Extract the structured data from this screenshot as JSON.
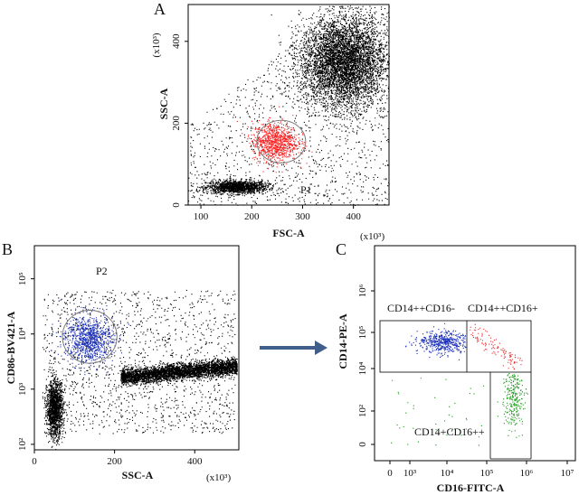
{
  "colors": {
    "events": "#000000",
    "p1_gate_events": "#ff2020",
    "p2_gate_events": "#1a2fb8",
    "q1_events": "#1a2fb8",
    "q2_events": "#e53030",
    "q3_events": "#1a9a1a",
    "gate_outline": "#7a7a7a",
    "arrow": "#3f5f8a"
  },
  "chart_data": [
    {
      "panel": "A",
      "type": "scatter",
      "xlabel": "FSC-A",
      "ylabel": "SSC-A",
      "x_unit": "(x10³)",
      "y_unit": "(x10³)",
      "xlim": [
        75,
        470
      ],
      "ylim": [
        0,
        490
      ],
      "x_ticks": [
        100,
        200,
        300,
        400
      ],
      "y_ticks": [
        0,
        200,
        400
      ],
      "populations": [
        {
          "name": "debris",
          "cx": 170,
          "cy": 45,
          "sx": 30,
          "sy": 8,
          "n": 1500
        },
        {
          "name": "granulocytes",
          "cx": 380,
          "cy": 350,
          "sx": 42,
          "sy": 55,
          "n": 5500
        },
        {
          "name": "P1",
          "cx": 245,
          "cy": 155,
          "sx": 22,
          "sy": 24,
          "n": 900
        },
        {
          "name": "background",
          "n": 1600
        }
      ],
      "gate": {
        "name": "P1",
        "label": "P1",
        "center": [
          258,
          155
        ],
        "radius": [
          48,
          52
        ]
      }
    },
    {
      "panel": "B",
      "type": "scatter",
      "xlabel": "SSC-A",
      "ylabel": "CD86-BV421-A",
      "x_unit": "(x10³)",
      "xlim": [
        0,
        510
      ],
      "ylim_log": [
        1.9,
        5.6
      ],
      "x_ticks": [
        0,
        200,
        400
      ],
      "y_ticks": [
        "10²",
        "10³",
        "10⁴",
        "10⁵"
      ],
      "y_tick_values": [
        2,
        3,
        4,
        5
      ],
      "populations": [
        {
          "name": "lymphocytes",
          "cx": 50,
          "cy": 2.65,
          "sx": 10,
          "sy": 0.25,
          "n": 1500
        },
        {
          "name": "P2",
          "cx": 135,
          "cy": 3.92,
          "sx": 30,
          "sy": 0.22,
          "n": 900
        },
        {
          "name": "granulocyte_band",
          "x_from": 215,
          "x_to": 505,
          "cy_from": 3.22,
          "cy_to": 3.42,
          "sy": 0.07,
          "n": 4000
        },
        {
          "name": "background",
          "n": 1400
        }
      ],
      "gate": {
        "name": "P2",
        "label": "P2",
        "center": [
          138,
          3.95
        ],
        "radius": [
          68,
          0.48
        ]
      }
    },
    {
      "panel": "C",
      "type": "scatter",
      "xlabel": "CD16-FITC-A",
      "ylabel": "CD14-PE-A",
      "x_ticks": [
        "0",
        "10³",
        "10⁴",
        "10⁵",
        "10⁶",
        "10⁷"
      ],
      "y_ticks": [
        "0",
        "10²",
        "10⁴",
        "10⁵",
        "10⁶"
      ],
      "quadrants": [
        {
          "label": "CD14++CD16-",
          "n": 500
        },
        {
          "label": "CD14++CD16+",
          "n": 120
        },
        {
          "label": "CD14+CD16++",
          "n": 260
        }
      ]
    }
  ],
  "arrow": {
    "direction": "right"
  }
}
